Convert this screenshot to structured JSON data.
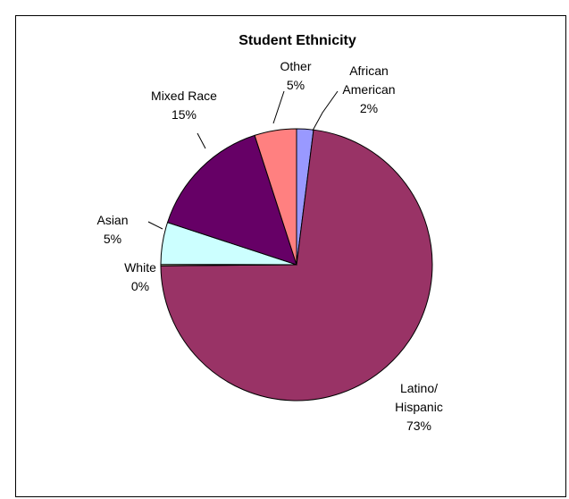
{
  "chart_data": {
    "type": "pie",
    "title": "Student Ethnicity",
    "start_angle_deg": 0,
    "direction": "clockwise",
    "slices": [
      {
        "label": "African American",
        "value": 2,
        "percent_label": "2%",
        "color": "#9999ff"
      },
      {
        "label": "Latino/ Hispanic",
        "value": 73,
        "percent_label": "73%",
        "color": "#993366"
      },
      {
        "label": "White",
        "value": 0,
        "percent_label": "0%",
        "color": "#ffffcc"
      },
      {
        "label": "Asian",
        "value": 5,
        "percent_label": "5%",
        "color": "#ccffff"
      },
      {
        "label": "Mixed Race",
        "value": 15,
        "percent_label": "15%",
        "color": "#660066"
      },
      {
        "label": "Other",
        "value": 5,
        "percent_label": "5%",
        "color": "#ff8080"
      }
    ]
  }
}
